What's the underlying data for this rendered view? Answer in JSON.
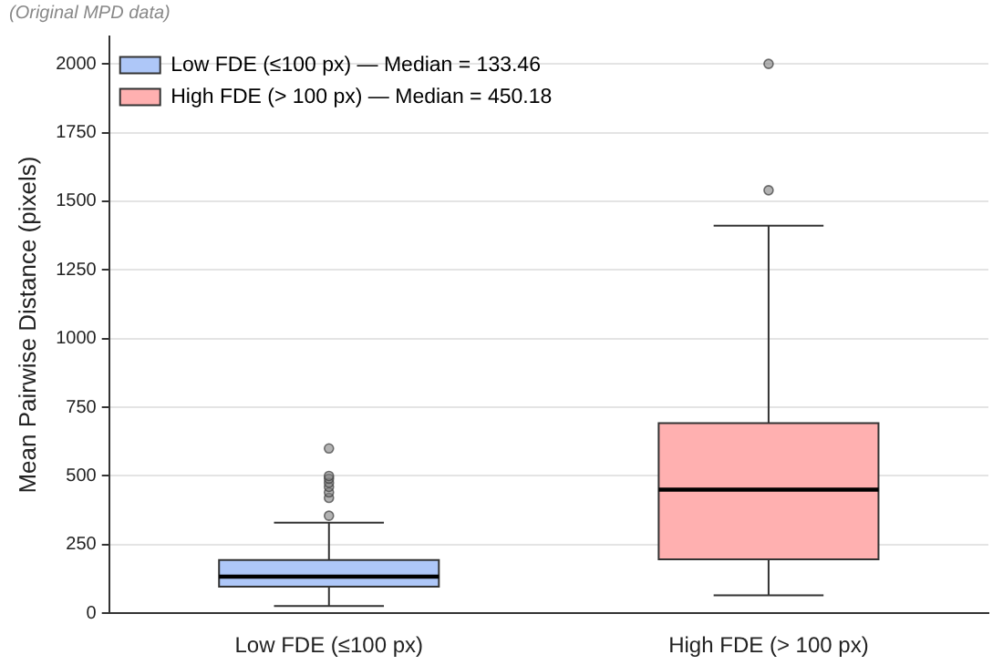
{
  "chart_data": {
    "type": "box",
    "subtitle": "(Original MPD data)",
    "ylabel": "Mean Pairwise Distance (pixels)",
    "categories": [
      "Low FDE (≤100 px)",
      "High FDE (> 100 px)"
    ],
    "series": [
      {
        "name": "Low FDE (≤100 px) — Median = 133.46",
        "color": "#aec7f8",
        "boxes": [
          {
            "low": 26,
            "q1": 97,
            "median": 133.46,
            "q3": 194,
            "high": 330,
            "outliers": [
              355,
              420,
              440,
              460,
              475,
              490,
              500,
              600
            ]
          },
          null
        ]
      },
      {
        "name": "High FDE (> 100 px) — Median = 450.18",
        "color": "#ffb0b0",
        "boxes": [
          null,
          {
            "low": 65,
            "q1": 196,
            "median": 450.18,
            "q3": 692,
            "high": 1411,
            "outliers": [
              1540,
              2000
            ]
          }
        ]
      }
    ],
    "ylim": [
      0,
      2100
    ],
    "yticks": [
      0,
      250,
      500,
      750,
      1000,
      1250,
      1500,
      1750,
      2000
    ],
    "grid": "y",
    "legend": "top left"
  }
}
